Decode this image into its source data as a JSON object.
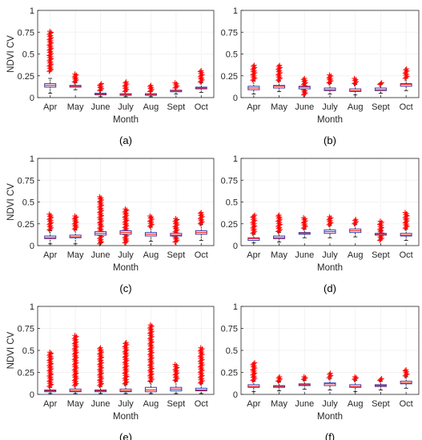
{
  "figure": {
    "style": {
      "outlier_color": "#ff0000",
      "box_color": "#3a3aa8",
      "median_color": "#ff0000",
      "whisker_color": "#000000",
      "grid_color": "#e6e6e6"
    }
  },
  "chart_data": [
    {
      "type": "box",
      "panel_label": "(a)",
      "xlabel": "Month",
      "ylabel": "NDVI CV",
      "categories": [
        "Apr",
        "May",
        "June",
        "July",
        "Aug",
        "Sept",
        "Oct"
      ],
      "ylim": [
        0,
        1
      ],
      "yticks": [
        0,
        0.25,
        0.5,
        0.75,
        1
      ],
      "ytick_labels": [
        "0",
        "0.25",
        "0.5",
        "0.75",
        "1"
      ],
      "grid": true,
      "boxes": [
        {
          "q1": 0.12,
          "median": 0.14,
          "q3": 0.16,
          "whisker_low": 0.05,
          "whisker_high": 0.22,
          "outlier_low": 0.3,
          "outlier_high": 0.76
        },
        {
          "q1": 0.12,
          "median": 0.13,
          "q3": 0.14,
          "whisker_low": 0.09,
          "whisker_high": 0.17,
          "outlier_low": 0.18,
          "outlier_high": 0.27
        },
        {
          "q1": 0.035,
          "median": 0.04,
          "q3": 0.05,
          "whisker_low": 0.01,
          "whisker_high": 0.08,
          "outlier_low": 0.08,
          "outlier_high": 0.16
        },
        {
          "q1": 0.03,
          "median": 0.035,
          "q3": 0.045,
          "whisker_low": 0.01,
          "whisker_high": 0.07,
          "outlier_low": 0.07,
          "outlier_high": 0.18
        },
        {
          "q1": 0.03,
          "median": 0.035,
          "q3": 0.045,
          "whisker_low": 0.01,
          "whisker_high": 0.07,
          "outlier_low": 0.07,
          "outlier_high": 0.14
        },
        {
          "q1": 0.07,
          "median": 0.075,
          "q3": 0.085,
          "whisker_low": 0.04,
          "whisker_high": 0.11,
          "outlier_low": 0.11,
          "outlier_high": 0.17
        },
        {
          "q1": 0.1,
          "median": 0.11,
          "q3": 0.12,
          "whisker_low": 0.06,
          "whisker_high": 0.17,
          "outlier_low": 0.18,
          "outlier_high": 0.31
        }
      ]
    },
    {
      "type": "box",
      "panel_label": "(b)",
      "xlabel": "Month",
      "ylabel": "",
      "categories": [
        "Apr",
        "May",
        "June",
        "July",
        "Aug",
        "Sept",
        "Oct"
      ],
      "ylim": [
        0,
        1
      ],
      "yticks": [
        0,
        0.25,
        0.5,
        0.75,
        1
      ],
      "ytick_labels": [
        "0",
        "0.25",
        "0.5",
        "0.75",
        "1"
      ],
      "grid": true,
      "boxes": [
        {
          "q1": 0.09,
          "median": 0.11,
          "q3": 0.13,
          "whisker_low": 0.04,
          "whisker_high": 0.19,
          "outlier_low": 0.2,
          "outlier_high": 0.37
        },
        {
          "q1": 0.11,
          "median": 0.13,
          "q3": 0.14,
          "whisker_low": 0.07,
          "whisker_high": 0.19,
          "outlier_low": 0.2,
          "outlier_high": 0.37
        },
        {
          "q1": 0.1,
          "median": 0.12,
          "q3": 0.13,
          "whisker_low": 0.06,
          "whisker_high": 0.18,
          "outlier_low": 0.03,
          "outlier_high": 0.22
        },
        {
          "q1": 0.08,
          "median": 0.09,
          "q3": 0.11,
          "whisker_low": 0.04,
          "whisker_high": 0.16,
          "outlier_low": 0.17,
          "outlier_high": 0.26
        },
        {
          "q1": 0.07,
          "median": 0.08,
          "q3": 0.1,
          "whisker_low": 0.03,
          "whisker_high": 0.15,
          "outlier_low": 0.16,
          "outlier_high": 0.22
        },
        {
          "q1": 0.08,
          "median": 0.09,
          "q3": 0.11,
          "whisker_low": 0.05,
          "whisker_high": 0.15,
          "outlier_low": 0.15,
          "outlier_high": 0.17
        },
        {
          "q1": 0.13,
          "median": 0.15,
          "q3": 0.16,
          "whisker_low": 0.08,
          "whisker_high": 0.22,
          "outlier_low": 0.22,
          "outlier_high": 0.33
        }
      ]
    },
    {
      "type": "box",
      "panel_label": "(c)",
      "xlabel": "Month",
      "ylabel": "NDVI CV",
      "categories": [
        "Apr",
        "May",
        "June",
        "July",
        "Aug",
        "Sept",
        "Oct"
      ],
      "ylim": [
        0,
        1
      ],
      "yticks": [
        0,
        0.25,
        0.5,
        0.75,
        1
      ],
      "ytick_labels": [
        "0",
        "0.25",
        "0.5",
        "0.75",
        "1"
      ],
      "grid": true,
      "boxes": [
        {
          "q1": 0.08,
          "median": 0.09,
          "q3": 0.11,
          "whisker_low": 0.02,
          "whisker_high": 0.17,
          "outlier_low": 0.18,
          "outlier_high": 0.36
        },
        {
          "q1": 0.09,
          "median": 0.1,
          "q3": 0.12,
          "whisker_low": 0.02,
          "whisker_high": 0.18,
          "outlier_low": 0.19,
          "outlier_high": 0.34
        },
        {
          "q1": 0.12,
          "median": 0.14,
          "q3": 0.16,
          "whisker_low": 0.04,
          "whisker_high": 0.24,
          "outlier_low": 0.02,
          "outlier_high": 0.56
        },
        {
          "q1": 0.13,
          "median": 0.15,
          "q3": 0.17,
          "whisker_low": 0.06,
          "whisker_high": 0.24,
          "outlier_low": 0.03,
          "outlier_high": 0.42
        },
        {
          "q1": 0.11,
          "median": 0.13,
          "q3": 0.15,
          "whisker_low": 0.05,
          "whisker_high": 0.21,
          "outlier_low": 0.22,
          "outlier_high": 0.34
        },
        {
          "q1": 0.11,
          "median": 0.12,
          "q3": 0.14,
          "whisker_low": 0.05,
          "whisker_high": 0.2,
          "outlier_low": 0.04,
          "outlier_high": 0.31
        },
        {
          "q1": 0.13,
          "median": 0.15,
          "q3": 0.17,
          "whisker_low": 0.06,
          "whisker_high": 0.24,
          "outlier_low": 0.25,
          "outlier_high": 0.38
        }
      ]
    },
    {
      "type": "box",
      "panel_label": "(d)",
      "xlabel": "Month",
      "ylabel": "",
      "categories": [
        "Apr",
        "May",
        "June",
        "July",
        "Aug",
        "Sept",
        "Oct"
      ],
      "ylim": [
        0,
        1
      ],
      "yticks": [
        0,
        0.25,
        0.5,
        0.75,
        1
      ],
      "ytick_labels": [
        "0",
        "0.25",
        "0.5",
        "0.75",
        "1"
      ],
      "grid": true,
      "boxes": [
        {
          "q1": 0.06,
          "median": 0.08,
          "q3": 0.09,
          "whisker_low": 0.03,
          "whisker_high": 0.13,
          "outlier_low": 0.14,
          "outlier_high": 0.35
        },
        {
          "q1": 0.08,
          "median": 0.09,
          "q3": 0.11,
          "whisker_low": 0.04,
          "whisker_high": 0.15,
          "outlier_low": 0.16,
          "outlier_high": 0.35
        },
        {
          "q1": 0.13,
          "median": 0.14,
          "q3": 0.15,
          "whisker_low": 0.09,
          "whisker_high": 0.19,
          "outlier_low": 0.2,
          "outlier_high": 0.32
        },
        {
          "q1": 0.14,
          "median": 0.16,
          "q3": 0.18,
          "whisker_low": 0.09,
          "whisker_high": 0.23,
          "outlier_low": 0.24,
          "outlier_high": 0.33
        },
        {
          "q1": 0.15,
          "median": 0.17,
          "q3": 0.19,
          "whisker_low": 0.1,
          "whisker_high": 0.24,
          "outlier_low": 0.25,
          "outlier_high": 0.3
        },
        {
          "q1": 0.12,
          "median": 0.13,
          "q3": 0.14,
          "whisker_low": 0.08,
          "whisker_high": 0.18,
          "outlier_low": 0.06,
          "outlier_high": 0.28
        },
        {
          "q1": 0.11,
          "median": 0.12,
          "q3": 0.14,
          "whisker_low": 0.06,
          "whisker_high": 0.19,
          "outlier_low": 0.2,
          "outlier_high": 0.38
        }
      ]
    },
    {
      "type": "box",
      "panel_label": "(e)",
      "xlabel": "Month",
      "ylabel": "NDVI CV",
      "categories": [
        "Apr",
        "May",
        "June",
        "July",
        "Aug",
        "Sept",
        "Oct"
      ],
      "ylim": [
        0,
        1
      ],
      "yticks": [
        0,
        0.25,
        0.5,
        0.75,
        1
      ],
      "ytick_labels": [
        "0",
        "0.25",
        "0.5",
        "0.75",
        "1"
      ],
      "grid": true,
      "boxes": [
        {
          "q1": 0.03,
          "median": 0.04,
          "q3": 0.05,
          "whisker_low": 0.01,
          "whisker_high": 0.08,
          "outlier_low": 0.09,
          "outlier_high": 0.48
        },
        {
          "q1": 0.03,
          "median": 0.04,
          "q3": 0.06,
          "whisker_low": 0.01,
          "whisker_high": 0.1,
          "outlier_low": 0.1,
          "outlier_high": 0.67
        },
        {
          "q1": 0.03,
          "median": 0.04,
          "q3": 0.05,
          "whisker_low": 0.01,
          "whisker_high": 0.09,
          "outlier_low": 0.1,
          "outlier_high": 0.53
        },
        {
          "q1": 0.03,
          "median": 0.04,
          "q3": 0.06,
          "whisker_low": 0.01,
          "whisker_high": 0.11,
          "outlier_low": 0.12,
          "outlier_high": 0.59
        },
        {
          "q1": 0.03,
          "median": 0.05,
          "q3": 0.08,
          "whisker_low": 0.01,
          "whisker_high": 0.14,
          "outlier_low": 0.15,
          "outlier_high": 0.79
        },
        {
          "q1": 0.04,
          "median": 0.06,
          "q3": 0.08,
          "whisker_low": 0.01,
          "whisker_high": 0.15,
          "outlier_low": 0.16,
          "outlier_high": 0.34
        },
        {
          "q1": 0.04,
          "median": 0.05,
          "q3": 0.07,
          "whisker_low": 0.01,
          "whisker_high": 0.12,
          "outlier_low": 0.13,
          "outlier_high": 0.53
        }
      ]
    },
    {
      "type": "box",
      "panel_label": "(f)",
      "xlabel": "Month",
      "ylabel": "",
      "categories": [
        "Apr",
        "May",
        "June",
        "July",
        "Aug",
        "Sept",
        "Oct"
      ],
      "ylim": [
        0,
        1
      ],
      "yticks": [
        0,
        0.25,
        0.5,
        0.75,
        1
      ],
      "ytick_labels": [
        "0",
        "0.25",
        "0.5",
        "0.75",
        "1"
      ],
      "grid": true,
      "boxes": [
        {
          "q1": 0.08,
          "median": 0.09,
          "q3": 0.11,
          "whisker_low": 0.03,
          "whisker_high": 0.15,
          "outlier_low": 0.16,
          "outlier_high": 0.36
        },
        {
          "q1": 0.08,
          "median": 0.09,
          "q3": 0.1,
          "whisker_low": 0.04,
          "whisker_high": 0.14,
          "outlier_low": 0.15,
          "outlier_high": 0.2
        },
        {
          "q1": 0.1,
          "median": 0.11,
          "q3": 0.12,
          "whisker_low": 0.06,
          "whisker_high": 0.16,
          "outlier_low": 0.17,
          "outlier_high": 0.2
        },
        {
          "q1": 0.1,
          "median": 0.12,
          "q3": 0.13,
          "whisker_low": 0.05,
          "whisker_high": 0.18,
          "outlier_low": 0.19,
          "outlier_high": 0.24
        },
        {
          "q1": 0.08,
          "median": 0.09,
          "q3": 0.11,
          "whisker_low": 0.03,
          "whisker_high": 0.16,
          "outlier_low": 0.17,
          "outlier_high": 0.2
        },
        {
          "q1": 0.09,
          "median": 0.1,
          "q3": 0.11,
          "whisker_low": 0.05,
          "whisker_high": 0.15,
          "outlier_low": 0.16,
          "outlier_high": 0.18
        },
        {
          "q1": 0.12,
          "median": 0.13,
          "q3": 0.15,
          "whisker_low": 0.07,
          "whisker_high": 0.2,
          "outlier_low": 0.21,
          "outlier_high": 0.28
        }
      ]
    }
  ]
}
